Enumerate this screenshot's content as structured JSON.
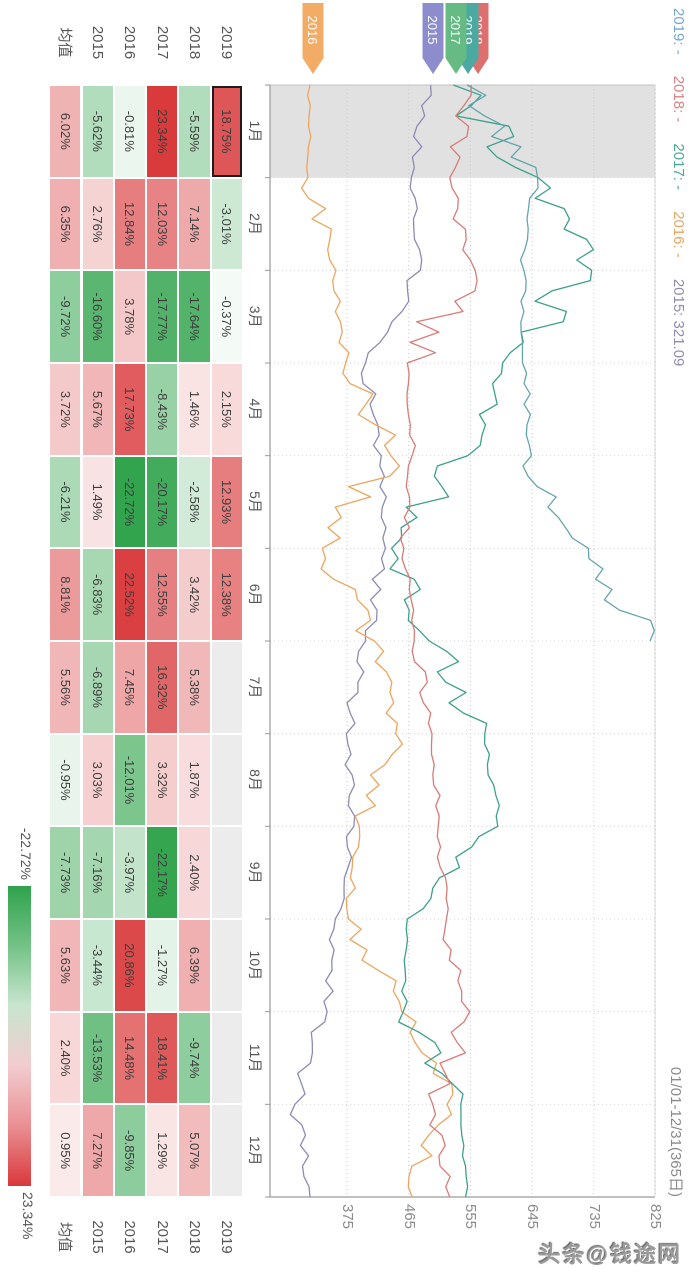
{
  "watermark": "头条@钱途网",
  "tooltip": {
    "segments": [
      {
        "year": "2019",
        "value": "-",
        "color": "#74a7d3"
      },
      {
        "year": "2018",
        "value": "-",
        "color": "#d98080"
      },
      {
        "year": "2017",
        "value": "-",
        "color": "#4aa795"
      },
      {
        "year": "2016",
        "value": "-",
        "color": "#e8a55e"
      },
      {
        "year": "2015",
        "value": "321.09",
        "color": "#8e8cb0"
      }
    ],
    "date_range": "01/01-12/31(365日)"
  },
  "chart_data": {
    "type": "line",
    "title": "",
    "xlabel": "",
    "ylabel": "",
    "x_range_label": "01/01-12/31(365日)",
    "months": [
      "1月",
      "2月",
      "3月",
      "4月",
      "5月",
      "6月",
      "7月",
      "8月",
      "9月",
      "10月",
      "11月",
      "12月"
    ],
    "y_ticks": [
      375,
      465,
      555,
      645,
      735,
      825
    ],
    "ylim": [
      263,
      830
    ],
    "grid": true,
    "highlighted_month_index": 0,
    "series": [
      {
        "name": "2015",
        "color": "#8c8bb4",
        "monthly_values": [
          497,
          469,
          482,
          402,
          425,
          431,
          402,
          374,
          385,
          358,
          346,
          299,
          321
        ]
      },
      {
        "name": "2016",
        "color": "#eda55e",
        "monthly_values": [
          321,
          318,
          359,
          373,
          439,
          339,
          415,
          446,
          393,
          377,
          455,
          521,
          470
        ]
      },
      {
        "name": "2017",
        "color": "#3da08c",
        "monthly_values": [
          530,
          654,
          732,
          602,
          551,
          440,
          495,
          576,
          595,
          463,
          457,
          541,
          548
        ]
      },
      {
        "name": "2018",
        "color": "#d97b76",
        "monthly_values": [
          556,
          525,
          562,
          463,
          470,
          458,
          473,
          499,
          508,
          520,
          554,
          500,
          525
        ]
      },
      {
        "name": "2019",
        "color": "#64a5ad",
        "monthly_values": [
          550,
          653,
          633,
          631,
          644,
          727,
          817
        ]
      }
    ],
    "start_flags": [
      {
        "name": "2018",
        "color": "#dd6f6f",
        "y_center": 214
      },
      {
        "name": "2019",
        "color": "#4aa9a0",
        "y_center": 224
      },
      {
        "name": "2017",
        "color": "#66bb84",
        "y_center": 236
      },
      {
        "name": "2015",
        "color": "#8d8ccc",
        "y_center": 259
      },
      {
        "name": "2016",
        "color": "#f2ac66",
        "y_center": 379
      }
    ]
  },
  "table": {
    "months": [
      "1月",
      "2月",
      "3月",
      "4月",
      "5月",
      "6月",
      "7月",
      "8月",
      "9月",
      "10月",
      "11月",
      "12月"
    ],
    "rows": [
      {
        "label": "2019",
        "cells": [
          "18.75%",
          "-3.01%",
          "-0.37%",
          "2.15%",
          "12.93%",
          "12.38%",
          "",
          "",
          "",
          "",
          "",
          ""
        ]
      },
      {
        "label": "2018",
        "cells": [
          "-5.59%",
          "7.14%",
          "-17.64%",
          "1.46%",
          "-2.58%",
          "3.42%",
          "5.38%",
          "1.87%",
          "2.40%",
          "6.39%",
          "-9.74%",
          "5.07%"
        ]
      },
      {
        "label": "2017",
        "cells": [
          "23.34%",
          "12.03%",
          "-17.77%",
          "-8.43%",
          "-20.17%",
          "12.55%",
          "16.32%",
          "3.32%",
          "-22.17%",
          "-1.27%",
          "18.41%",
          "1.29%"
        ]
      },
      {
        "label": "2016",
        "cells": [
          "-0.81%",
          "12.84%",
          "3.78%",
          "17.73%",
          "-22.72%",
          "22.52%",
          "7.45%",
          "-12.01%",
          "-3.97%",
          "20.86%",
          "14.48%",
          "-9.85%"
        ]
      },
      {
        "label": "2015",
        "cells": [
          "-5.62%",
          "2.76%",
          "-16.60%",
          "5.67%",
          "1.49%",
          "-6.83%",
          "-6.89%",
          "3.03%",
          "-7.16%",
          "-3.44%",
          "-13.53%",
          "7.27%"
        ]
      },
      {
        "label": "均值",
        "cells": [
          "6.02%",
          "6.35%",
          "-9.72%",
          "3.72%",
          "-6.21%",
          "8.81%",
          "5.56%",
          "-0.95%",
          "-7.73%",
          "5.63%",
          "2.40%",
          "0.95%"
        ]
      }
    ],
    "selected_cell": {
      "row": "2019",
      "month": "1月",
      "value": "18.75%"
    },
    "colors": {
      "positive": "#d93a3c",
      "negative": "#2ea24a",
      "empty": "#ececec",
      "max_abs": 23.34
    }
  },
  "legend": {
    "min_label": "-22.72%",
    "max_label": "23.34%",
    "colors": [
      "#2fa24c",
      "#74c287",
      "#c9e5cf",
      "#f2ccd0",
      "#e98f93",
      "#d9383c"
    ]
  }
}
